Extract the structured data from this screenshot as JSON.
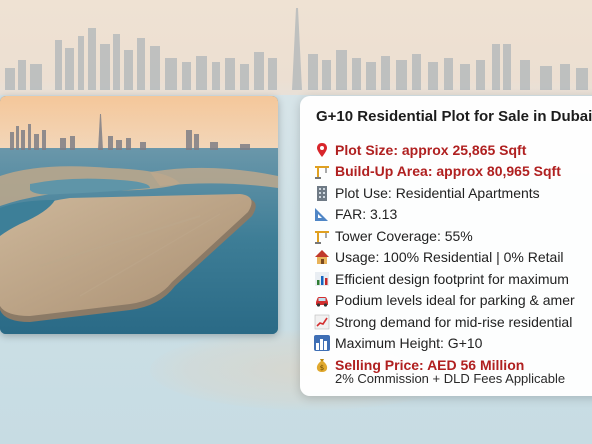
{
  "card": {
    "title": "G+10 Residential Plot for Sale in Dubai",
    "items": [
      {
        "icon": "pin-icon",
        "text": "Plot Size: approx 25,865 Sqft",
        "highlight": true
      },
      {
        "icon": "crane-icon",
        "text": "Build-Up Area: approx 80,965 Sqft",
        "highlight": true
      },
      {
        "icon": "building-icon",
        "text": "Plot Use: Residential Apartments",
        "highlight": false
      },
      {
        "icon": "ruler-triangle-icon",
        "text": "FAR: 3.13",
        "highlight": false
      },
      {
        "icon": "crane-icon",
        "text": "Tower Coverage: 55%",
        "highlight": false
      },
      {
        "icon": "house-icon",
        "text": "Usage: 100% Residential | 0% Retail",
        "highlight": false
      },
      {
        "icon": "bar-chart-icon",
        "text": "Efficient design footprint for maximum",
        "highlight": false
      },
      {
        "icon": "car-icon",
        "text": "Podium levels ideal for parking & amer",
        "highlight": false
      },
      {
        "icon": "trend-up-icon",
        "text": "Strong demand for mid-rise residential",
        "highlight": false
      },
      {
        "icon": "skyline-icon",
        "text": "Maximum Height: G+10",
        "highlight": false
      },
      {
        "icon": "money-bag-icon",
        "text": "Selling Price: AED 56 Million",
        "highlight": true
      }
    ],
    "footnote": "2% Commission + DLD Fees Applicable"
  },
  "colors": {
    "highlight": "#b02020",
    "text": "#222222"
  }
}
